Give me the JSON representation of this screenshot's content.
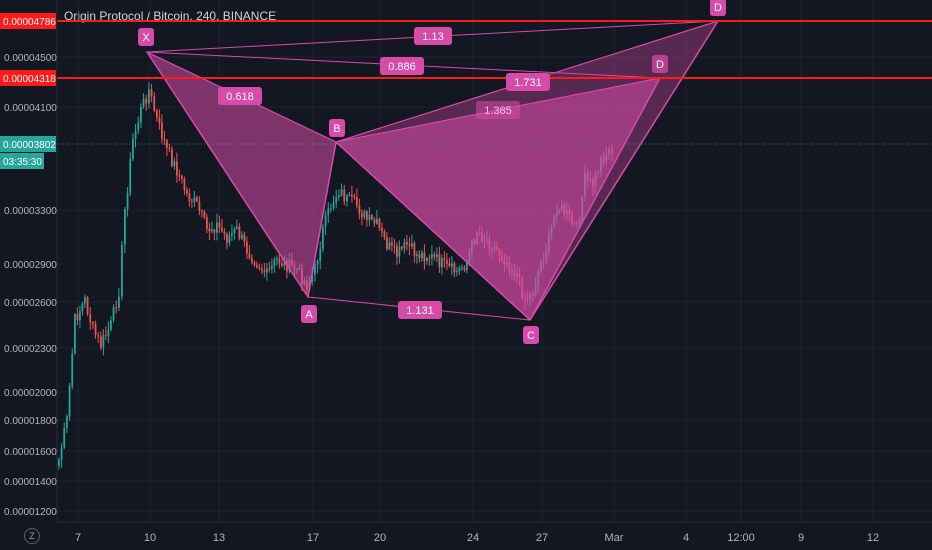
{
  "header": {
    "symbol": "Origin Protocol / Bitcoin",
    "interval": "240",
    "exchange": "BINANCE"
  },
  "colors": {
    "background": "#131722",
    "up": "#26a69a",
    "down": "#ef5350",
    "pattern": "#d74aa8",
    "hline": "#ff1a1a",
    "price_badge": "#26a69a"
  },
  "left_price_labels": [
    "0.00004500",
    "0.00004100",
    "0.00003300",
    "0.00002900",
    "0.00002600",
    "0.00002300",
    "0.00002000",
    "0.00001800",
    "0.00001600",
    "0.00001400",
    "0.00001200"
  ],
  "hlines": [
    {
      "price_label": "0.00004786"
    },
    {
      "price_label": "0.00004318"
    }
  ],
  "current_price": {
    "value": "0.00003802",
    "countdown": "03:35:30"
  },
  "x_axis_labels": [
    "7",
    "10",
    "13",
    "17",
    "20",
    "24",
    "27",
    "Mar",
    "4",
    "12:00",
    "9",
    "12"
  ],
  "z_label": "Z",
  "chart_data": {
    "type": "candlestick",
    "title": "Origin Protocol / Bitcoin, 240, BINANCE",
    "y_axis_side": "left",
    "ylim": [
      1.15e-05,
      4.95e-05
    ],
    "pattern_points": [
      {
        "label": "X",
        "price": 4.52e-05
      },
      {
        "label": "A",
        "price": 2.58e-05
      },
      {
        "label": "B",
        "price": 3.72e-05
      },
      {
        "label": "C",
        "price": 2.49e-05
      },
      {
        "label": "D",
        "price": 4.3e-05
      },
      {
        "label": "D",
        "price": 4.8e-05
      }
    ],
    "ratios": [
      "0.618",
      "1.13",
      "0.886",
      "1.731",
      "1.385",
      "1.131"
    ]
  }
}
